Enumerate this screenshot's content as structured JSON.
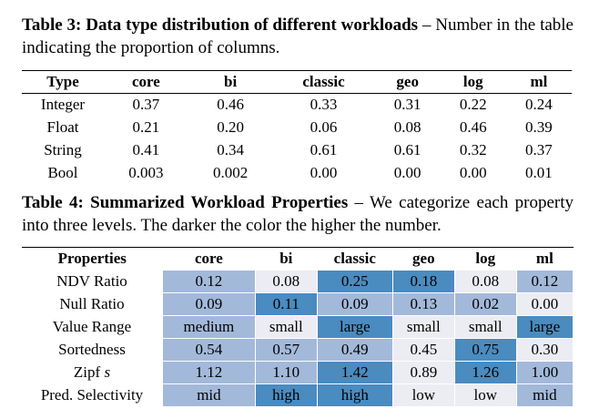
{
  "table3": {
    "title": "Table 3: Data type distribution of different workloads",
    "caption_rest": " – Number in the table indicating the proportion of columns.",
    "header_label": "Type",
    "columns": [
      "core",
      "bi",
      "classic",
      "geo",
      "log",
      "ml"
    ],
    "rows": [
      {
        "label": "Integer",
        "values": [
          "0.37",
          "0.46",
          "0.33",
          "0.31",
          "0.22",
          "0.24"
        ]
      },
      {
        "label": "Float",
        "values": [
          "0.21",
          "0.20",
          "0.06",
          "0.08",
          "0.46",
          "0.39"
        ]
      },
      {
        "label": "String",
        "values": [
          "0.41",
          "0.34",
          "0.61",
          "0.61",
          "0.32",
          "0.37"
        ]
      },
      {
        "label": "Bool",
        "values": [
          "0.003",
          "0.002",
          "0.00",
          "0.00",
          "0.00",
          "0.01"
        ]
      }
    ]
  },
  "table4": {
    "title": "Table 4: Summarized Workload Properties",
    "caption_rest": " – We categorize each property into three levels. The darker the color the higher the number.",
    "header_label": "Properties",
    "columns": [
      "core",
      "bi",
      "classic",
      "geo",
      "log",
      "ml"
    ],
    "rows": [
      {
        "label": "NDV Ratio",
        "values": [
          "0.12",
          "0.08",
          "0.25",
          "0.18",
          "0.08",
          "0.12"
        ],
        "levels": [
          1,
          0,
          2,
          2,
          0,
          1
        ]
      },
      {
        "label": "Null Ratio",
        "values": [
          "0.09",
          "0.11",
          "0.09",
          "0.13",
          "0.02",
          "0.00"
        ],
        "levels": [
          1,
          2,
          1,
          1,
          1,
          0
        ]
      },
      {
        "label": "Value Range",
        "values": [
          "medium",
          "small",
          "large",
          "small",
          "small",
          "large"
        ],
        "levels": [
          1,
          0,
          2,
          0,
          0,
          2
        ]
      },
      {
        "label": "Sortedness",
        "values": [
          "0.54",
          "0.57",
          "0.49",
          "0.45",
          "0.75",
          "0.30"
        ],
        "levels": [
          1,
          1,
          1,
          0,
          2,
          0
        ]
      },
      {
        "label": "Zipf s",
        "values": [
          "1.12",
          "1.10",
          "1.42",
          "0.89",
          "1.26",
          "1.00"
        ],
        "levels": [
          1,
          1,
          2,
          0,
          2,
          1
        ]
      },
      {
        "label": "Pred. Selectivity",
        "values": [
          "mid",
          "high",
          "high",
          "low",
          "low",
          "mid"
        ],
        "levels": [
          1,
          2,
          2,
          0,
          0,
          1
        ]
      }
    ]
  }
}
